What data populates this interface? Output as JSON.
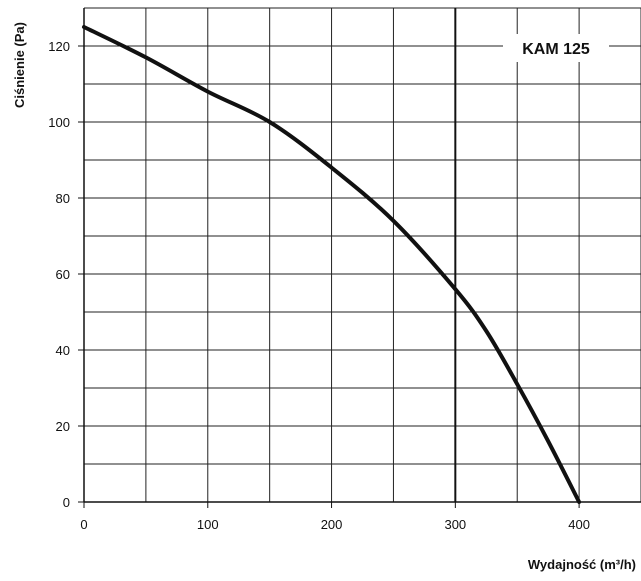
{
  "chart_data": {
    "type": "line",
    "title": "",
    "xlabel": "Wydajność (m³/h)",
    "ylabel": "Ciśnienie (Pa)",
    "xlim": [
      0,
      450
    ],
    "ylim": [
      0,
      130
    ],
    "x_ticks": [
      0,
      100,
      200,
      300,
      400
    ],
    "y_ticks": [
      0,
      20,
      40,
      60,
      80,
      100,
      120
    ],
    "grid": true,
    "x_grid_step": 50,
    "y_grid_step": 10,
    "reference_line_x": 300,
    "series": [
      {
        "name": "KAM 125",
        "x": [
          0,
          50,
          100,
          150,
          200,
          250,
          300,
          325,
          350,
          375,
          400
        ],
        "y": [
          125,
          117,
          108,
          100,
          88,
          74,
          56,
          45,
          31,
          16,
          0
        ]
      }
    ],
    "colors": {
      "line": "#111111",
      "grid": "#222222"
    }
  }
}
